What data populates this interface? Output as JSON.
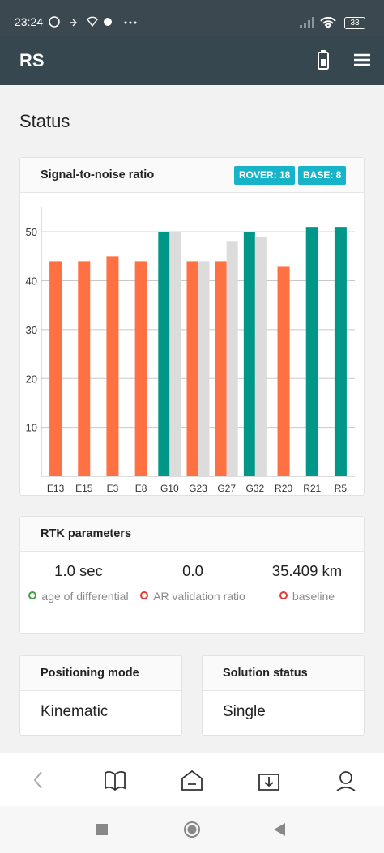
{
  "status_bar": {
    "time": "23:24",
    "battery": "33"
  },
  "app_bar": {
    "title": "RS"
  },
  "page_title": "Status",
  "snr_badges": [
    "ROVER: 18",
    "BASE: 8"
  ],
  "chart_data": {
    "type": "bar",
    "title": "Signal-to-noise ratio",
    "categories": [
      "E13",
      "E15",
      "E3",
      "E8",
      "G10",
      "G23",
      "G27",
      "G32",
      "R20",
      "R21",
      "R5"
    ],
    "series": [
      {
        "colors": [
          "#ff7043",
          "#ff7043",
          "#ff7043",
          "#ff7043",
          "#009688",
          "#ff7043",
          "#ff7043",
          "#009688",
          "#ff7043",
          "#009688",
          "#009688"
        ],
        "values": [
          44,
          44,
          45,
          44,
          50,
          44,
          44,
          50,
          43,
          51,
          51
        ]
      },
      {
        "color": "#dcdcdc",
        "values": [
          null,
          null,
          null,
          null,
          50,
          44,
          48,
          49,
          null,
          null,
          null
        ]
      }
    ],
    "ylim": [
      0,
      55
    ],
    "yticks": [
      10,
      20,
      30,
      40,
      50
    ],
    "grid": true
  },
  "rtk": {
    "title": "RTK parameters",
    "items": [
      {
        "value": "1.0 sec",
        "label": "age of differential",
        "dot_color": "#43a047"
      },
      {
        "value": "0.0",
        "label": "AR validation ratio",
        "dot_color": "#e53935"
      },
      {
        "value": "35.409 km",
        "label": "baseline",
        "dot_color": "#e53935"
      }
    ]
  },
  "positioning": {
    "title": "Positioning mode",
    "value": "Kinematic"
  },
  "solution": {
    "title": "Solution status",
    "value": "Single"
  }
}
